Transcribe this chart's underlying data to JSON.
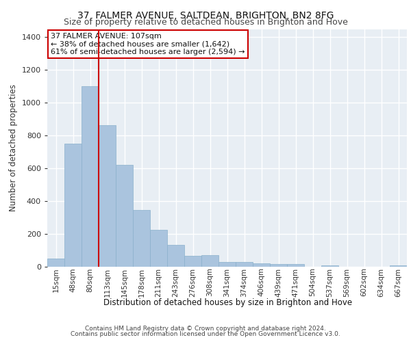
{
  "title1": "37, FALMER AVENUE, SALTDEAN, BRIGHTON, BN2 8FG",
  "title2": "Size of property relative to detached houses in Brighton and Hove",
  "xlabel": "Distribution of detached houses by size in Brighton and Hove",
  "ylabel": "Number of detached properties",
  "categories": [
    "15sqm",
    "48sqm",
    "80sqm",
    "113sqm",
    "145sqm",
    "178sqm",
    "211sqm",
    "243sqm",
    "276sqm",
    "308sqm",
    "341sqm",
    "374sqm",
    "406sqm",
    "439sqm",
    "471sqm",
    "504sqm",
    "537sqm",
    "569sqm",
    "602sqm",
    "634sqm",
    "667sqm"
  ],
  "values": [
    50,
    750,
    1100,
    865,
    620,
    345,
    225,
    135,
    65,
    70,
    30,
    30,
    20,
    15,
    15,
    0,
    10,
    0,
    0,
    0,
    10
  ],
  "bar_color": "#aac4de",
  "bar_edge_color": "#8ab0cc",
  "bg_color": "#e8eef4",
  "grid_color": "#ffffff",
  "annotation_text_line1": "37 FALMER AVENUE: 107sqm",
  "annotation_text_line2": "← 38% of detached houses are smaller (1,642)",
  "annotation_text_line3": "61% of semi-detached houses are larger (2,594) →",
  "vline_color": "#cc0000",
  "annotation_box_color": "#ffffff",
  "annotation_box_edge": "#cc0000",
  "footer1": "Contains HM Land Registry data © Crown copyright and database right 2024.",
  "footer2": "Contains public sector information licensed under the Open Government Licence v3.0.",
  "ylim": [
    0,
    1450
  ],
  "title1_fontsize": 10,
  "title2_fontsize": 9,
  "xlabel_fontsize": 8.5,
  "ylabel_fontsize": 8.5,
  "annotation_fontsize": 8,
  "tick_fontsize": 7.5,
  "footer_fontsize": 6.5
}
